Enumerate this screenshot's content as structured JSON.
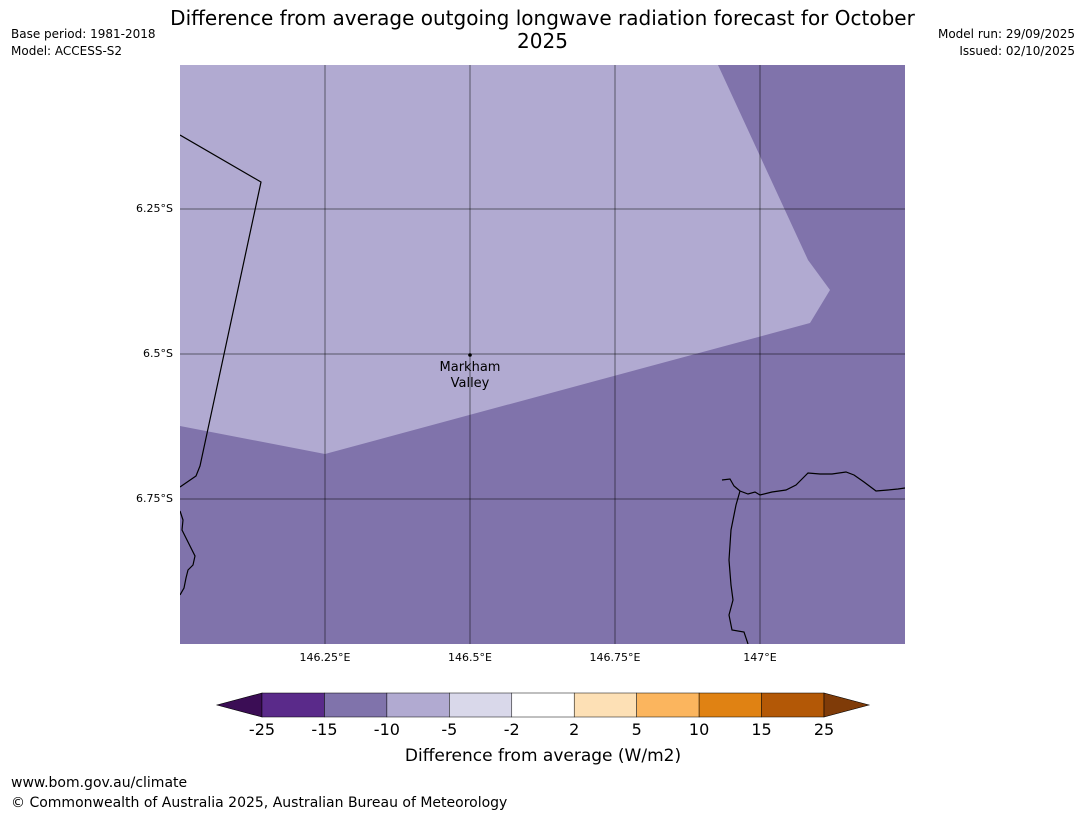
{
  "header": {
    "title": "Difference from average outgoing longwave radiation forecast for October 2025",
    "base_period": "Base period: 1981-2018",
    "model": "Model: ACCESS-S2",
    "model_run": "Model run: 29/09/2025",
    "issued": "Issued: 02/10/2025"
  },
  "map": {
    "latitude_labels": [
      "6.25°S",
      "6.5°S",
      "6.75°S"
    ],
    "longitude_labels": [
      "146.25°E",
      "146.5°E",
      "146.75°E",
      "147°E"
    ],
    "place": {
      "name": "Markham Valley",
      "line1": "Markham",
      "line2": "Valley"
    },
    "region_values": [
      {
        "category": "-10 to -5",
        "color": "#b1aad1"
      },
      {
        "category": "-15 to -10",
        "color": "#8073ab"
      }
    ]
  },
  "colorbar": {
    "title": "Difference from average (W/m2)",
    "ticks": [
      "-25",
      "-15",
      "-10",
      "-5",
      "-2",
      "2",
      "5",
      "10",
      "15",
      "25"
    ],
    "colors": [
      "#5a2a8a",
      "#8073ab",
      "#b1aad1",
      "#d9d8ea",
      "#ffffff",
      "#fde0b5",
      "#fbb55e",
      "#e08213",
      "#b35806"
    ],
    "extend_low_color": "#3b0d55",
    "extend_high_color": "#7f3b08"
  },
  "footer": {
    "website": "www.bom.gov.au/climate",
    "copyright": "© Commonwealth of Australia 2025, Australian Bureau of Meteorology"
  }
}
